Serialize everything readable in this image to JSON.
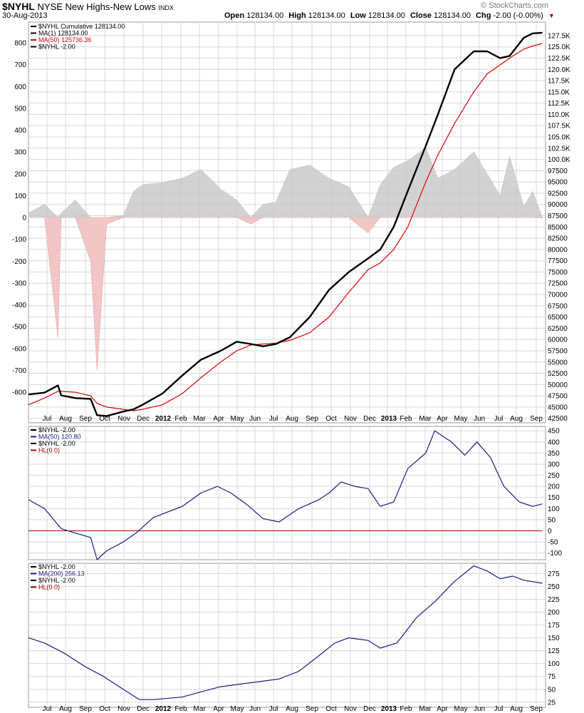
{
  "header": {
    "symbol": "$NYHL",
    "name": "NYSE New Highs-New Lows",
    "type": "INDX",
    "date": "30-Aug-2013",
    "watermark": "© StockCharts.com",
    "open_label": "Open",
    "open": "128134.00",
    "high_label": "High",
    "high": "128134.00",
    "low_label": "Low",
    "low": "128134.00",
    "close_label": "Close",
    "close": "128134.00",
    "chg_label": "Chg",
    "chg": "-2.00 (-0.00%)"
  },
  "colors": {
    "cumulative": "#000000",
    "ma50": "#e00000",
    "bars_pos": "#c8c8c8",
    "bars_neg": "#f2c6c6",
    "indicator": "#1a1a8c",
    "hl": "#a00000",
    "grid": "#d8d8d8"
  },
  "x_axis": {
    "labels": [
      "Jul",
      "Aug",
      "Sep",
      "Oct",
      "Nov",
      "Dec",
      "2012",
      "Feb",
      "Mar",
      "Apr",
      "May",
      "Jun",
      "Jul",
      "Aug",
      "Sep",
      "Oct",
      "Nov",
      "Dec",
      "2013",
      "Feb",
      "Mar",
      "Apr",
      "May",
      "Jun",
      "Jul",
      "Aug",
      "Sep"
    ],
    "bold": [
      "2012",
      "2013"
    ]
  },
  "panels": [
    {
      "legend": [
        {
          "text": "$NYHL  Cumulative 128134.00",
          "color": "#000000"
        },
        {
          "text": "MA(1) 128134.00",
          "color": "#000000"
        },
        {
          "text": "MA(50) 125736.36",
          "color": "#e00000"
        },
        {
          "text": "$NYHL -2.00",
          "color": "#000000"
        }
      ],
      "left_axis_ticks": [
        "800",
        "700",
        "600",
        "500",
        "400",
        "300",
        "200",
        "100",
        "0",
        "-100",
        "-200",
        "-300",
        "-400",
        "-500",
        "-600",
        "-700",
        "-800"
      ],
      "right_axis_ticks": [
        "127.5K",
        "125.0K",
        "122.5K",
        "120.0K",
        "117.5K",
        "115.0K",
        "112.5K",
        "110.0K",
        "107.5K",
        "105.0K",
        "102.5K",
        "100.0K",
        "97500",
        "95000",
        "92500",
        "90000",
        "87500",
        "85000",
        "82500",
        "80000",
        "77500",
        "75000",
        "72500",
        "70000",
        "67500",
        "65000",
        "62500",
        "60000",
        "57500",
        "55000",
        "52500",
        "50000",
        "47500",
        "45000",
        "42500"
      ]
    },
    {
      "legend": [
        {
          "text": "$NYHL -2.00",
          "color": "#000000"
        },
        {
          "text": "MA(50) 120.80",
          "color": "#1a1a8c"
        },
        {
          "text": "$NYHL -2.00",
          "color": "#000000"
        },
        {
          "text": "HL(0.0)",
          "color": "#a00000"
        }
      ],
      "right_axis_ticks": [
        "450",
        "400",
        "350",
        "300",
        "250",
        "200",
        "150",
        "100",
        "50",
        "0",
        "-50",
        "-100"
      ]
    },
    {
      "legend": [
        {
          "text": "$NYHL -2.00",
          "color": "#000000"
        },
        {
          "text": "MA(200) 256.13",
          "color": "#1a1a8c"
        },
        {
          "text": "$NYHL -2.00",
          "color": "#000000"
        },
        {
          "text": "HL(0.0)",
          "color": "#a00000"
        }
      ],
      "right_axis_ticks": [
        "275",
        "250",
        "225",
        "200",
        "175",
        "150",
        "125",
        "100",
        "75",
        "50",
        "25"
      ]
    }
  ],
  "chart_data": [
    {
      "type": "line",
      "title": "$NYHL NYSE New Highs-New Lows INDX",
      "x": [
        "2011-06-20",
        "2011-07-15",
        "2011-08-05",
        "2011-08-10",
        "2011-09-01",
        "2011-09-25",
        "2011-10-05",
        "2011-10-20",
        "2011-11-15",
        "2011-12-01",
        "2011-12-15",
        "2012-01-15",
        "2012-02-15",
        "2012-03-15",
        "2012-04-15",
        "2012-05-10",
        "2012-06-01",
        "2012-06-20",
        "2012-07-10",
        "2012-08-01",
        "2012-09-01",
        "2012-10-01",
        "2012-11-01",
        "2012-12-01",
        "2012-12-20",
        "2013-01-10",
        "2013-02-01",
        "2013-03-01",
        "2013-03-20",
        "2013-04-15",
        "2013-05-15",
        "2013-06-05",
        "2013-06-25",
        "2013-07-10",
        "2013-08-01",
        "2013-08-15",
        "2013-08-30"
      ],
      "series": [
        {
          "name": "$NYHL Cumulative",
          "values": [
            47800,
            48200,
            49800,
            47600,
            47000,
            46800,
            43200,
            43000,
            44000,
            44500,
            45500,
            48000,
            52000,
            55500,
            57500,
            59500,
            59000,
            58500,
            59000,
            60500,
            65000,
            71000,
            75000,
            78000,
            80000,
            85000,
            93000,
            103000,
            110000,
            120000,
            124000,
            124000,
            122500,
            123000,
            127000,
            128000,
            128134
          ]
        },
        {
          "name": "MA(50)",
          "values": [
            45500,
            47000,
            48500,
            48500,
            48300,
            47500,
            45800,
            45000,
            44500,
            44200,
            44500,
            45500,
            48000,
            51500,
            55000,
            57500,
            58800,
            59000,
            59200,
            59800,
            61500,
            65000,
            70500,
            75500,
            77000,
            80000,
            85000,
            95000,
            101000,
            108000,
            115000,
            119000,
            121000,
            122500,
            124500,
            125200,
            125736
          ]
        },
        {
          "name": "$NYHL",
          "values": [
            20,
            60,
            -550,
            20,
            80,
            -200,
            -700,
            -30,
            10,
            120,
            150,
            160,
            180,
            220,
            130,
            80,
            -30,
            60,
            70,
            220,
            240,
            180,
            140,
            -70,
            150,
            230,
            260,
            320,
            180,
            220,
            300,
            200,
            100,
            280,
            50,
            120,
            -2
          ]
        }
      ],
      "ylabel": "",
      "ylim_left": [
        -900,
        900
      ],
      "ylim_right": [
        41500,
        130500
      ]
    },
    {
      "type": "line",
      "x": [
        "2011-06-20",
        "2011-07-15",
        "2011-08-10",
        "2011-09-01",
        "2011-09-25",
        "2011-10-05",
        "2011-10-20",
        "2011-11-15",
        "2011-12-05",
        "2012-01-01",
        "2012-02-15",
        "2012-03-15",
        "2012-04-10",
        "2012-05-01",
        "2012-05-25",
        "2012-06-20",
        "2012-07-15",
        "2012-08-15",
        "2012-09-15",
        "2012-10-01",
        "2012-10-20",
        "2012-11-10",
        "2012-12-01",
        "2012-12-20",
        "2013-01-10",
        "2013-02-01",
        "2013-03-01",
        "2013-03-15",
        "2013-04-10",
        "2013-05-01",
        "2013-05-20",
        "2013-06-10",
        "2013-07-01",
        "2013-07-25",
        "2013-08-15",
        "2013-08-30"
      ],
      "series": [
        {
          "name": "MA(50)",
          "values": [
            140,
            100,
            10,
            -10,
            -30,
            -130,
            -90,
            -50,
            -10,
            60,
            110,
            170,
            200,
            170,
            120,
            55,
            40,
            100,
            140,
            170,
            220,
            200,
            190,
            110,
            130,
            280,
            350,
            450,
            400,
            340,
            400,
            330,
            200,
            130,
            110,
            120.8
          ]
        },
        {
          "name": "HL(0.0)",
          "values": [
            0,
            0,
            0,
            0,
            0,
            0,
            0,
            0,
            0,
            0,
            0,
            0,
            0,
            0,
            0,
            0,
            0,
            0,
            0,
            0,
            0,
            0,
            0,
            0,
            0,
            0,
            0,
            0,
            0,
            0,
            0,
            0,
            0,
            0,
            0,
            0
          ]
        }
      ],
      "ylim": [
        -130,
        470
      ]
    },
    {
      "type": "line",
      "x": [
        "2011-06-20",
        "2011-07-15",
        "2011-08-15",
        "2011-09-15",
        "2011-10-15",
        "2011-11-15",
        "2011-12-10",
        "2012-01-01",
        "2012-02-15",
        "2012-03-15",
        "2012-04-15",
        "2012-05-15",
        "2012-06-15",
        "2012-07-15",
        "2012-08-15",
        "2012-09-15",
        "2012-10-10",
        "2012-11-01",
        "2012-12-01",
        "2012-12-20",
        "2013-01-15",
        "2013-02-15",
        "2013-03-15",
        "2013-04-15",
        "2013-05-15",
        "2013-06-05",
        "2013-06-25",
        "2013-07-15",
        "2013-08-01",
        "2013-08-30"
      ],
      "series": [
        {
          "name": "MA(200)",
          "values": [
            150,
            140,
            120,
            95,
            75,
            50,
            30,
            30,
            35,
            45,
            55,
            60,
            65,
            70,
            85,
            115,
            140,
            150,
            145,
            130,
            140,
            190,
            220,
            260,
            290,
            280,
            265,
            270,
            262,
            256.13
          ]
        },
        {
          "name": "HL(0.0)",
          "values": [
            0,
            0,
            0,
            0,
            0,
            0,
            0,
            0,
            0,
            0,
            0,
            0,
            0,
            0,
            0,
            0,
            0,
            0,
            0,
            0,
            0,
            0,
            0,
            0,
            0,
            0,
            0,
            0,
            0,
            0
          ]
        }
      ],
      "ylim": [
        15,
        295
      ]
    }
  ]
}
